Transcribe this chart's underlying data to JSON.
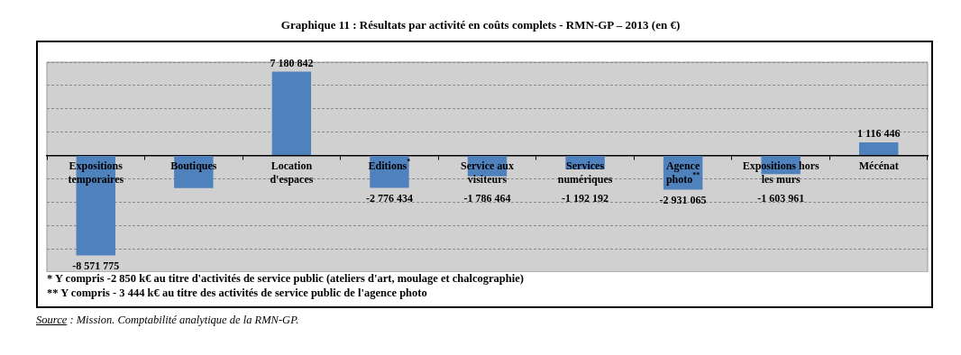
{
  "chart_data": {
    "type": "bar",
    "title": "Graphique 11 : Résultats par activité en coûts complets - RMN-GP – 2013 (en €)",
    "categories": [
      "Expositions temporaires",
      "Boutiques",
      "Location d'espaces",
      "Editions$^{*}$",
      "Service aux visiteurs",
      "Services numériques",
      "Agence photo$^{**}$",
      "Expositions hors les murs",
      "Mécénat"
    ],
    "values": [
      -8571775,
      -2800000,
      7180842,
      -2776434,
      -1786464,
      -1192192,
      -2931065,
      -1603961,
      1116446
    ],
    "value_labels": [
      "-8 571 775",
      null,
      "7 180 842",
      "-2 776 434",
      "-1 786 464",
      "-1 192 192",
      "-2 931 065",
      "-1 603 961",
      "1 116 446"
    ],
    "color": "#4f81bd",
    "ylim": [
      -10000000,
      8000000
    ],
    "yticks": [
      {
        "value": -10000000,
        "label": null
      },
      {
        "value": -8000000,
        "label": null
      },
      {
        "value": -6000000,
        "label": null
      },
      {
        "value": -4000000,
        "label": null
      },
      {
        "value": -2000000,
        "label": null
      },
      {
        "value": 0,
        "label": null
      },
      {
        "value": 2000000,
        "label": null
      },
      {
        "value": 4000000,
        "label": null
      },
      {
        "value": 6000000,
        "label": null
      },
      {
        "value": 8000000,
        "label": null
      }
    ],
    "tick_labels": "x",
    "grid": "y",
    "legend": false,
    "annotations": [
      "* Y compris -2 850 k€ au titre d'activités de service public (ateliers d'art, moulage et chalcographie)",
      "** Y compris - 3 444 k€ au titre des activités de service public de l'agence photo",
      "Source : Mission. Comptabilité analytique de la RMN-GP."
    ]
  }
}
